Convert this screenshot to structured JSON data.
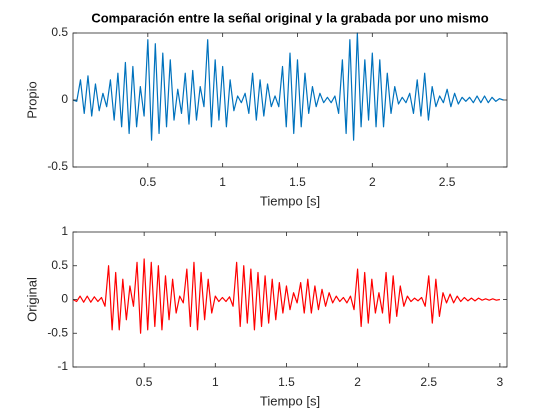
{
  "chart_data": [
    {
      "type": "line",
      "title": "Comparación entre la señal original y la grabada por uno mismo",
      "xlabel": "Tiempo [s]",
      "ylabel": "Propio",
      "xlim": [
        0,
        2.9
      ],
      "ylim": [
        -0.5,
        0.5
      ],
      "xticks": [
        0.5,
        1,
        1.5,
        2,
        2.5
      ],
      "yticks": [
        -0.5,
        0,
        0.5
      ],
      "grid": false,
      "series": [
        {
          "name": "Propio",
          "color": "#0072bd",
          "x": [
            0,
            0.025,
            0.05,
            0.075,
            0.1,
            0.125,
            0.15,
            0.175,
            0.2,
            0.225,
            0.25,
            0.275,
            0.3,
            0.325,
            0.35,
            0.375,
            0.4,
            0.425,
            0.45,
            0.475,
            0.5,
            0.525,
            0.55,
            0.575,
            0.6,
            0.625,
            0.65,
            0.675,
            0.7,
            0.725,
            0.75,
            0.775,
            0.8,
            0.825,
            0.85,
            0.875,
            0.9,
            0.925,
            0.95,
            0.975,
            1.0,
            1.025,
            1.05,
            1.075,
            1.1,
            1.125,
            1.15,
            1.175,
            1.2,
            1.225,
            1.25,
            1.275,
            1.3,
            1.325,
            1.35,
            1.375,
            1.4,
            1.425,
            1.45,
            1.475,
            1.5,
            1.525,
            1.55,
            1.575,
            1.6,
            1.625,
            1.65,
            1.675,
            1.7,
            1.725,
            1.75,
            1.775,
            1.8,
            1.825,
            1.85,
            1.875,
            1.9,
            1.925,
            1.95,
            1.975,
            2.0,
            2.025,
            2.05,
            2.075,
            2.1,
            2.125,
            2.15,
            2.175,
            2.2,
            2.225,
            2.25,
            2.275,
            2.3,
            2.325,
            2.35,
            2.375,
            2.4,
            2.425,
            2.45,
            2.475,
            2.5,
            2.525,
            2.55,
            2.575,
            2.6,
            2.625,
            2.65,
            2.675,
            2.7,
            2.725,
            2.75,
            2.775,
            2.8,
            2.825,
            2.85,
            2.875
          ],
          "values": [
            0,
            -0.01,
            0.15,
            -0.1,
            0.18,
            -0.12,
            0.12,
            -0.08,
            0.05,
            -0.05,
            0.15,
            -0.15,
            0.2,
            -0.2,
            0.28,
            -0.25,
            0.25,
            -0.2,
            0.1,
            -0.12,
            0.45,
            -0.3,
            0.42,
            -0.25,
            0.35,
            -0.2,
            0.3,
            -0.15,
            0.08,
            -0.1,
            0.2,
            -0.18,
            0.22,
            -0.15,
            0.1,
            -0.05,
            0.45,
            -0.2,
            0.3,
            -0.15,
            0.25,
            -0.2,
            0.15,
            -0.08,
            0.03,
            -0.02,
            0.05,
            -0.1,
            0.2,
            -0.15,
            0.15,
            -0.12,
            0.12,
            -0.05,
            0.03,
            -0.05,
            0.25,
            -0.2,
            0.35,
            -0.25,
            0.3,
            -0.2,
            0.2,
            -0.1,
            0.1,
            -0.05,
            0.05,
            -0.02,
            0.02,
            -0.02,
            0.03,
            -0.1,
            0.3,
            -0.25,
            0.45,
            -0.3,
            0.5,
            -0.2,
            0.3,
            -0.15,
            0.35,
            -0.2,
            0.3,
            -0.2,
            0.2,
            -0.1,
            0.1,
            -0.03,
            0.02,
            -0.02,
            0.05,
            -0.1,
            0.15,
            -0.12,
            0.2,
            -0.15,
            0.1,
            -0.05,
            0.03,
            -0.02,
            0.08,
            -0.05,
            0.05,
            -0.03,
            0.02,
            -0.01,
            0.02,
            -0.02,
            0.03,
            -0.02,
            0.03,
            -0.02,
            0.02,
            -0.01,
            0.01,
            0
          ]
        }
      ]
    },
    {
      "type": "line",
      "xlabel": "Tiempo [s]",
      "ylabel": "Original",
      "xlim": [
        0,
        3.05
      ],
      "ylim": [
        -1,
        1
      ],
      "xticks": [
        0.5,
        1,
        1.5,
        2,
        2.5,
        3
      ],
      "yticks": [
        -1,
        -0.5,
        0,
        0.5,
        1
      ],
      "grid": false,
      "series": [
        {
          "name": "Original",
          "color": "#ff0000",
          "x": [
            0,
            0.025,
            0.05,
            0.075,
            0.1,
            0.125,
            0.15,
            0.175,
            0.2,
            0.225,
            0.25,
            0.275,
            0.3,
            0.325,
            0.35,
            0.375,
            0.4,
            0.425,
            0.45,
            0.475,
            0.5,
            0.525,
            0.55,
            0.575,
            0.6,
            0.625,
            0.65,
            0.675,
            0.7,
            0.725,
            0.75,
            0.775,
            0.8,
            0.825,
            0.85,
            0.875,
            0.9,
            0.925,
            0.95,
            0.975,
            1.0,
            1.025,
            1.05,
            1.075,
            1.1,
            1.125,
            1.15,
            1.175,
            1.2,
            1.225,
            1.25,
            1.275,
            1.3,
            1.325,
            1.35,
            1.375,
            1.4,
            1.425,
            1.45,
            1.475,
            1.5,
            1.525,
            1.55,
            1.575,
            1.6,
            1.625,
            1.65,
            1.675,
            1.7,
            1.725,
            1.75,
            1.775,
            1.8,
            1.825,
            1.85,
            1.875,
            1.9,
            1.925,
            1.95,
            1.975,
            2.0,
            2.025,
            2.05,
            2.075,
            2.1,
            2.125,
            2.15,
            2.175,
            2.2,
            2.225,
            2.25,
            2.275,
            2.3,
            2.325,
            2.35,
            2.375,
            2.4,
            2.425,
            2.45,
            2.475,
            2.5,
            2.525,
            2.55,
            2.575,
            2.6,
            2.625,
            2.65,
            2.675,
            2.7,
            2.725,
            2.75,
            2.775,
            2.8,
            2.825,
            2.85,
            2.875,
            2.9,
            2.925,
            2.95,
            2.975,
            3.0
          ],
          "values": [
            0,
            -0.03,
            0.05,
            -0.04,
            0.05,
            -0.04,
            0.04,
            -0.03,
            0.03,
            -0.1,
            0.5,
            -0.45,
            0.4,
            -0.45,
            0.3,
            -0.3,
            0.2,
            -0.1,
            0.55,
            -0.5,
            0.6,
            -0.45,
            0.55,
            -0.4,
            0.5,
            -0.45,
            0.35,
            -0.3,
            0.3,
            -0.2,
            0.05,
            -0.05,
            0.45,
            -0.4,
            0.55,
            -0.45,
            0.4,
            -0.3,
            0.3,
            -0.2,
            0.05,
            -0.03,
            0.03,
            -0.03,
            0.04,
            -0.1,
            0.55,
            -0.4,
            0.5,
            -0.35,
            0.45,
            -0.45,
            0.4,
            -0.4,
            0.35,
            -0.35,
            0.3,
            -0.3,
            0.25,
            -0.2,
            0.2,
            -0.15,
            0.1,
            -0.05,
            0.25,
            -0.2,
            0.3,
            -0.2,
            0.2,
            -0.15,
            0.15,
            -0.1,
            0.1,
            -0.05,
            0.05,
            -0.03,
            0.03,
            -0.05,
            0.05,
            -0.15,
            0.45,
            -0.4,
            0.4,
            -0.35,
            0.3,
            -0.2,
            0.1,
            -0.2,
            0.4,
            -0.35,
            0.35,
            -0.25,
            0.2,
            -0.1,
            0.05,
            -0.03,
            0.02,
            -0.02,
            0.03,
            -0.1,
            0.35,
            -0.35,
            0.3,
            -0.25,
            0.1,
            -0.05,
            0.08,
            -0.05,
            0.05,
            -0.03,
            0.03,
            -0.02,
            0.02,
            -0.02,
            0.02,
            -0.01,
            0.01,
            -0.01,
            0.01,
            -0.01,
            0
          ]
        }
      ]
    }
  ]
}
